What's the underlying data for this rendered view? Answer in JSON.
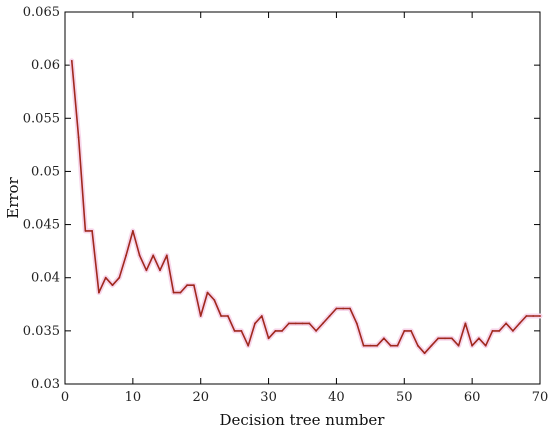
{
  "chart_data": {
    "type": "line",
    "xlabel": "Decision tree number",
    "ylabel": "Error",
    "xlim": [
      0,
      70
    ],
    "ylim": [
      0.03,
      0.065
    ],
    "x_ticks": [
      0,
      10,
      20,
      30,
      40,
      50,
      60,
      70
    ],
    "y_ticks": [
      0.03,
      0.035,
      0.04,
      0.045,
      0.05,
      0.055,
      0.06,
      0.065
    ],
    "x_tick_labels": [
      "0",
      "10",
      "20",
      "30",
      "40",
      "50",
      "60",
      "70"
    ],
    "y_tick_labels": [
      "0.03",
      "0.035",
      "0.04",
      "0.045",
      "0.05",
      "0.055",
      "0.06",
      "0.065"
    ],
    "grid": false,
    "legend": "none",
    "series": [
      {
        "color": "#a0281e",
        "x": [
          1,
          2,
          3,
          4,
          5,
          6,
          7,
          8,
          9,
          10,
          11,
          12,
          13,
          14,
          15,
          16,
          17,
          18,
          19,
          20,
          21,
          22,
          23,
          24,
          25,
          26,
          27,
          28,
          29,
          30,
          31,
          32,
          33,
          34,
          35,
          36,
          37,
          38,
          39,
          40,
          41,
          42,
          43,
          44,
          45,
          46,
          47,
          48,
          49,
          50,
          51,
          52,
          53,
          54,
          55,
          56,
          57,
          58,
          59,
          60,
          61,
          62,
          63,
          64,
          65,
          66,
          67,
          68,
          69,
          70
        ],
        "values": [
          0.0604,
          0.0532,
          0.0444,
          0.0444,
          0.0386,
          0.04,
          0.0393,
          0.04,
          0.0421,
          0.0444,
          0.0421,
          0.0407,
          0.0421,
          0.0407,
          0.0421,
          0.0386,
          0.0386,
          0.0393,
          0.0393,
          0.0364,
          0.0386,
          0.0379,
          0.0364,
          0.0364,
          0.035,
          0.035,
          0.0336,
          0.0357,
          0.0364,
          0.0343,
          0.035,
          0.035,
          0.0357,
          0.0357,
          0.0357,
          0.0357,
          0.035,
          0.0357,
          0.0364,
          0.0371,
          0.0371,
          0.0371,
          0.0357,
          0.0336,
          0.0336,
          0.0336,
          0.0343,
          0.0336,
          0.0336,
          0.035,
          0.035,
          0.0336,
          0.0329,
          0.0336,
          0.0343,
          0.0343,
          0.0343,
          0.0336,
          0.0357,
          0.0336,
          0.0343,
          0.0336,
          0.035,
          0.035,
          0.0357,
          0.035,
          0.0357,
          0.0364,
          0.0364,
          0.0364
        ]
      }
    ]
  }
}
